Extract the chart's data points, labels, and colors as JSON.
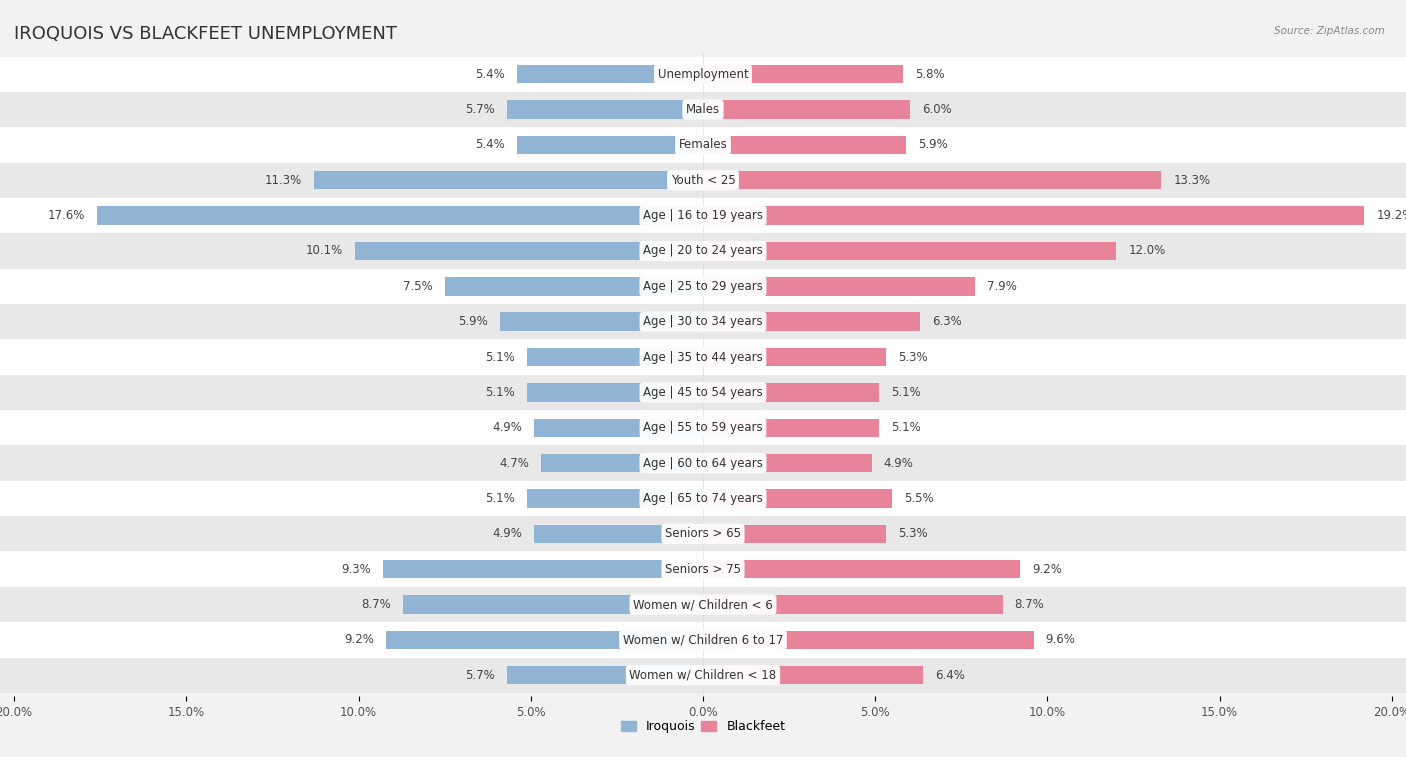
{
  "title": "IROQUOIS VS BLACKFEET UNEMPLOYMENT",
  "source": "Source: ZipAtlas.com",
  "categories": [
    "Unemployment",
    "Males",
    "Females",
    "Youth < 25",
    "Age | 16 to 19 years",
    "Age | 20 to 24 years",
    "Age | 25 to 29 years",
    "Age | 30 to 34 years",
    "Age | 35 to 44 years",
    "Age | 45 to 54 years",
    "Age | 55 to 59 years",
    "Age | 60 to 64 years",
    "Age | 65 to 74 years",
    "Seniors > 65",
    "Seniors > 75",
    "Women w/ Children < 6",
    "Women w/ Children 6 to 17",
    "Women w/ Children < 18"
  ],
  "iroquois": [
    5.4,
    5.7,
    5.4,
    11.3,
    17.6,
    10.1,
    7.5,
    5.9,
    5.1,
    5.1,
    4.9,
    4.7,
    5.1,
    4.9,
    9.3,
    8.7,
    9.2,
    5.7
  ],
  "blackfeet": [
    5.8,
    6.0,
    5.9,
    13.3,
    19.2,
    12.0,
    7.9,
    6.3,
    5.3,
    5.1,
    5.1,
    4.9,
    5.5,
    5.3,
    9.2,
    8.7,
    9.6,
    6.4
  ],
  "iroquois_color": "#92b4d4",
  "blackfeet_color": "#e8849a",
  "axis_max": 20.0,
  "background_color": "#f2f2f2",
  "row_light": "#ffffff",
  "row_dark": "#e8e8e8",
  "label_fontsize": 8.5,
  "value_fontsize": 8.5,
  "title_fontsize": 13,
  "title_color": "#333333",
  "source_color": "#888888",
  "value_color": "#444444"
}
